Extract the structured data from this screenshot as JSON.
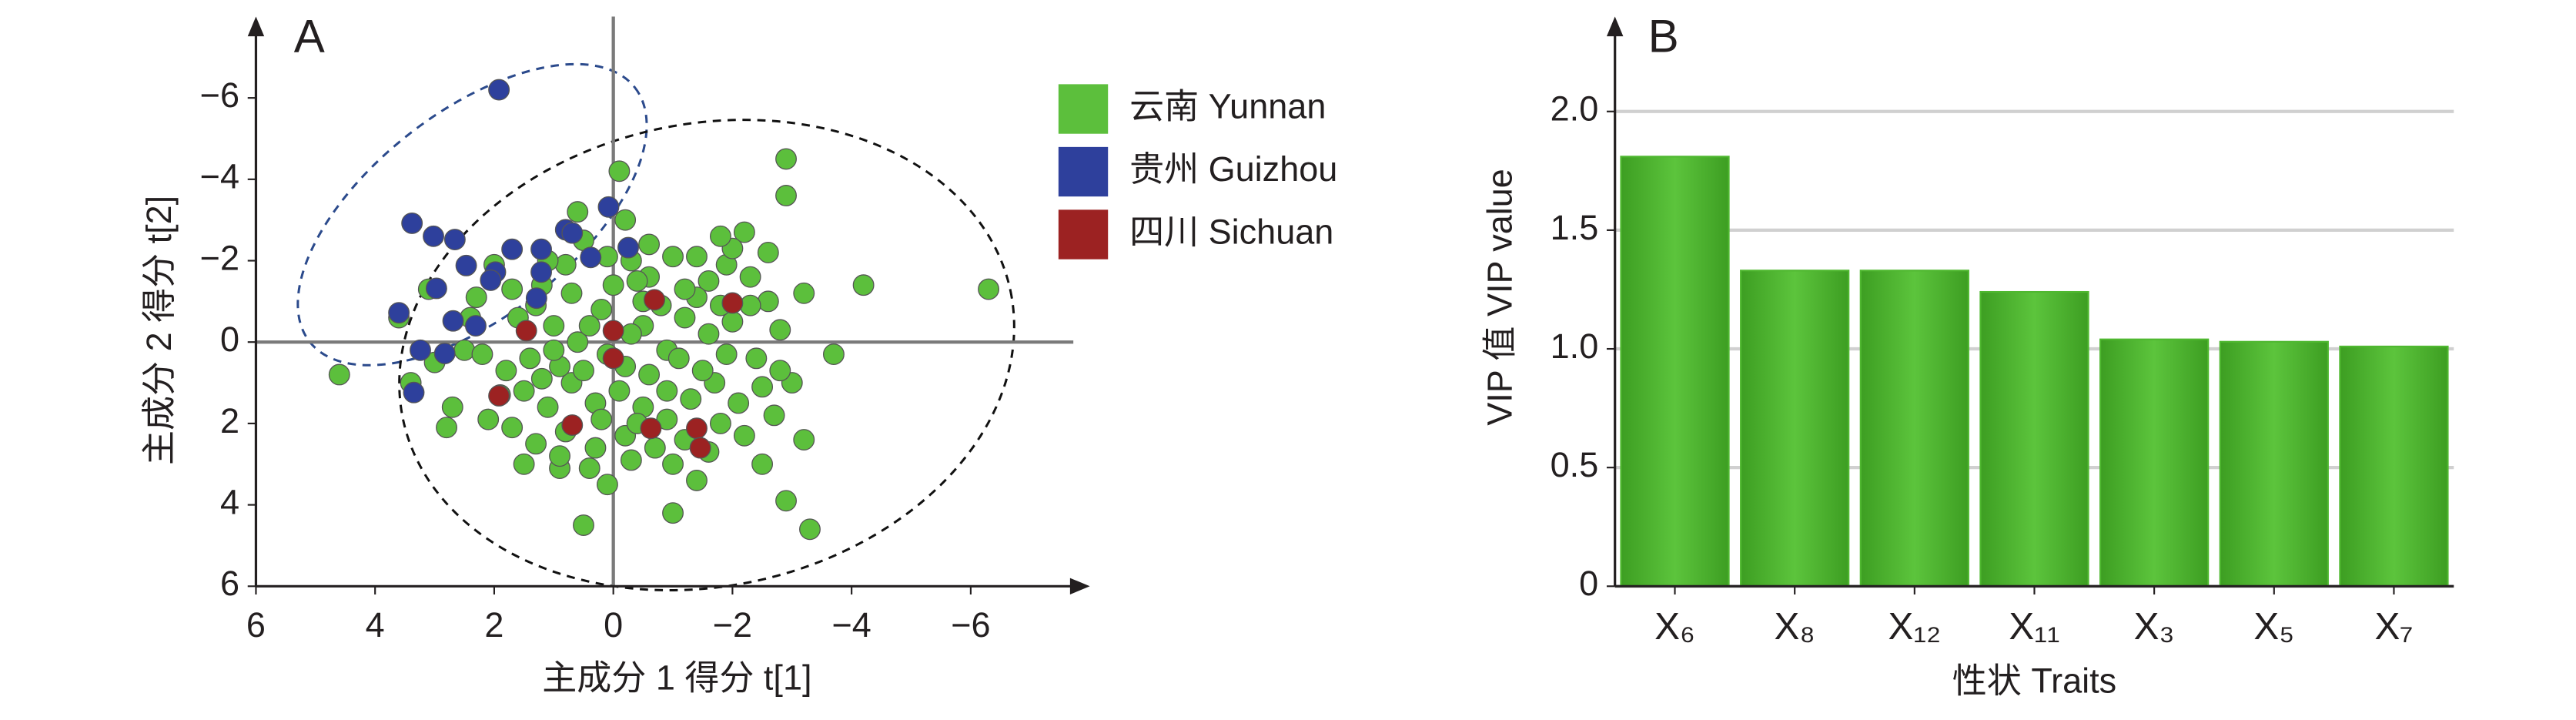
{
  "chart_data": [
    {
      "type": "scatter",
      "panel": "A",
      "xlabel": "主成分 1 得分 t[1]",
      "ylabel": "主成分 2 得分 t[2]",
      "xlim": [
        6,
        -8
      ],
      "ylim": [
        6,
        -8
      ],
      "xticks": [
        6,
        4,
        2,
        0,
        {
          "value": -2,
          "label": "−2"
        },
        {
          "value": -4,
          "label": "−4"
        },
        {
          "value": -6,
          "label": "−6"
        }
      ],
      "yticks": [
        6,
        4,
        2,
        0,
        {
          "value": -2,
          "label": "−2"
        },
        {
          "value": -4,
          "label": "−4"
        },
        {
          "value": -6,
          "label": "−6"
        }
      ],
      "legend": "right",
      "series": [
        {
          "name": "云南 Yunnan",
          "color": "#5cbf3c",
          "x": [
            -6.3,
            4.6,
            -4.2,
            -3.7,
            0.5,
            -1.0,
            -3.3,
            -2.9,
            -0.1,
            -2.9,
            -2.9,
            -3.2,
            -3.0,
            -3.2,
            -2.6,
            -2.2,
            0.1,
            0.9,
            2.5,
            2.7,
            3.1,
            3.6,
            3.4,
            2.0,
            1.6,
            1.2,
            0.8,
            0.5,
            0.1,
            -0.3,
            -0.6,
            -1.0,
            -1.4,
            -1.6,
            -1.9,
            -2.3,
            -2.0,
            -1.6,
            -1.2,
            -0.9,
            -0.5,
            -0.2,
            0.2,
            0.6,
            1.0,
            1.4,
            1.8,
            2.2,
            2.4,
            1.9,
            1.5,
            1.1,
            0.7,
            0.3,
            -0.1,
            -0.5,
            -0.9,
            -1.3,
            -1.7,
            -2.1,
            -2.5,
            -2.4,
            -2.8,
            -2.6,
            -1.8,
            -1.2,
            -0.7,
            -0.2,
            0.3,
            0.8,
            1.3,
            1.7,
            2.1,
            0.9,
            0.4,
            -0.3,
            -1.0,
            -1.6,
            -2.2,
            -2.7,
            -0.5,
            0.0,
            0.4,
            0.9,
            1.3,
            1.7,
            2.3,
            -0.8,
            -1.4,
            -1.8,
            -2.3,
            -0.3,
            0.1,
            -1.1,
            -1.5,
            -1.9,
            -0.6,
            0.5,
            1.0,
            -2.0,
            -1.2,
            0.7,
            1.1,
            -0.2,
            -0.6,
            -1.8,
            0.2,
            -0.4,
            -0.9,
            1.5,
            -1.4,
            2.8,
            -2.5,
            1.2,
            -2.8,
            3.0,
            -0.4,
            0.6
          ],
          "values": [
            -1.3,
            0.8,
            -1.4,
            0.3,
            4.5,
            4.2,
            4.6,
            3.9,
            -4.2,
            -4.5,
            -3.6,
            2.4,
            1.0,
            -1.2,
            -2.2,
            -2.7,
            3.5,
            3.1,
            0.2,
            1.6,
            -1.3,
            -0.6,
            1.0,
            -1.9,
            -0.6,
            -1.4,
            -1.9,
            -2.5,
            -2.1,
            -2.0,
            -1.6,
            -2.1,
            -2.1,
            -1.5,
            -1.9,
            -1.6,
            -0.5,
            -0.2,
            -0.6,
            0.2,
            -0.4,
            0.6,
            -0.8,
            0.0,
            -0.4,
            0.4,
            0.7,
            0.3,
            -0.6,
            1.3,
            1.2,
            1.6,
            1.0,
            1.5,
            1.2,
            1.6,
            1.2,
            1.4,
            1.0,
            1.5,
            1.1,
            0.4,
            -0.3,
            -1.0,
            2.0,
            2.4,
            2.6,
            2.3,
            2.6,
            2.2,
            2.5,
            2.1,
            1.9,
            2.8,
            3.1,
            2.9,
            3.0,
            2.7,
            2.3,
            1.8,
            -1.0,
            -1.4,
            -0.4,
            0.6,
            -0.9,
            -1.3,
            -1.1,
            -0.9,
            -1.1,
            -0.9,
            -0.9,
            -0.2,
            0.3,
            0.4,
            0.7,
            0.3,
            0.8,
            0.7,
            0.2,
            -2.3,
            -1.3,
            -1.2,
            -2.0,
            -3.0,
            -2.4,
            -2.6,
            1.9,
            2.0,
            1.9,
            3.0,
            3.4,
            2.1,
            3.0,
            0.9,
            0.7,
            0.5,
            -1.5,
            -3.2
          ]
        },
        {
          "name": "贵州 Guizhou",
          "color": "#2e409c",
          "x": [
            1.92,
            3.38,
            3.02,
            2.66,
            2.47,
            1.98,
            1.7,
            1.21,
            0.8,
            0.69,
            0.08,
            -0.25,
            0.38,
            1.21,
            1.29,
            2.06,
            2.69,
            2.31,
            2.97,
            3.6,
            3.24,
            2.83,
            3.35
          ],
          "values": [
            -6.2,
            -2.92,
            -2.6,
            -2.52,
            -1.88,
            -1.72,
            -2.28,
            -2.28,
            -2.76,
            -2.68,
            -3.32,
            -2.32,
            -2.08,
            -1.72,
            -1.08,
            -1.52,
            -0.52,
            -0.4,
            -1.32,
            -0.72,
            0.2,
            0.28,
            1.24
          ]
        },
        {
          "name": "四川 Sichuan",
          "color": "#9c2222",
          "x": [
            1.92,
            1.46,
            0.69,
            0,
            0,
            -0.69,
            -0.63,
            -1.4,
            -1.46,
            -2.0
          ],
          "values": [
            1.32,
            -0.28,
            2.04,
            -0.28,
            0.4,
            -1.04,
            2.12,
            2.12,
            2.6,
            -0.96
          ]
        }
      ]
    },
    {
      "type": "bar",
      "panel": "B",
      "xlabel": "性状 Traits",
      "ylabel": "VIP 值 VIP value",
      "categories": [
        "X₆",
        "X₈",
        "X₁₂",
        "X₁₁",
        "X₃",
        "X₅",
        "X₇"
      ],
      "values": [
        1.81,
        1.33,
        1.33,
        1.24,
        1.04,
        1.03,
        1.01
      ],
      "color": "#4fb830",
      "ylim": [
        0,
        2.4
      ],
      "yticks": [
        0,
        0.5,
        {
          "value": 1,
          "label": "1.0"
        },
        1.5,
        {
          "value": 2,
          "label": "2.0"
        }
      ],
      "grid": true
    }
  ]
}
